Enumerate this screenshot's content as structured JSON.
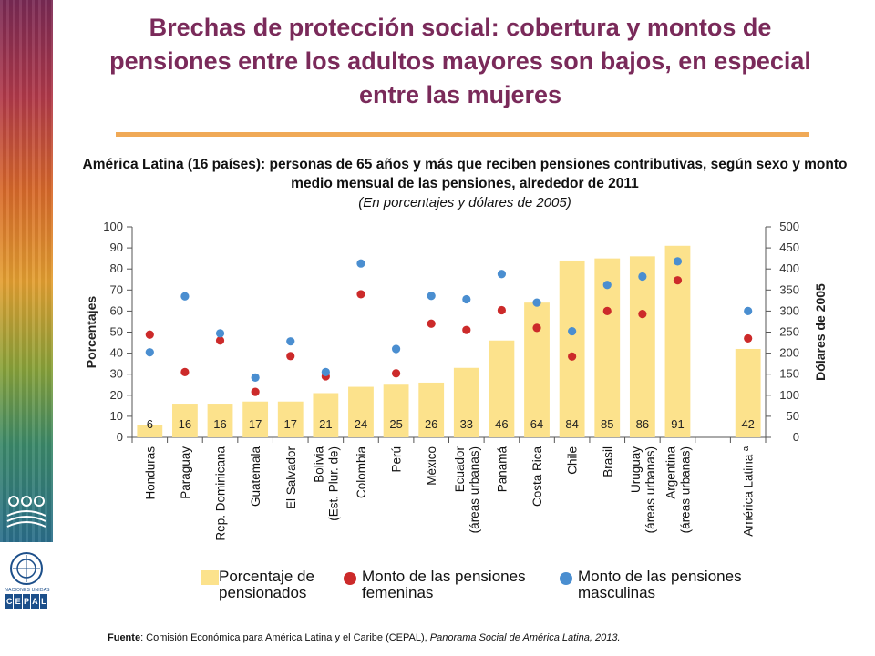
{
  "header": {
    "title": "Brechas de protección social: cobertura y montos de pensiones entre los adultos mayores son bajos, en especial entre las mujeres",
    "subtitle": "América Latina (16 países): personas de 65 años y más que reciben pensiones contributivas, según sexo y monto medio mensual de las pensiones, alrededor de 2011",
    "subtitle_note": "(En porcentajes y dólares de 2005)"
  },
  "logos": {
    "un_label": "NACIONES UNIDAS",
    "cepal_letters": [
      "C",
      "E",
      "P",
      "A",
      "L"
    ]
  },
  "chart_data": {
    "type": "bar",
    "ylabel_left": "Porcentajes",
    "ylabel_right": "Dólares de 2005",
    "ylim_left": [
      0,
      100
    ],
    "ylim_right": [
      0,
      500
    ],
    "yticks_left": [
      0,
      10,
      20,
      30,
      40,
      50,
      60,
      70,
      80,
      90,
      100
    ],
    "yticks_right": [
      0,
      50,
      100,
      150,
      200,
      250,
      300,
      350,
      400,
      450,
      500
    ],
    "categories": [
      [
        "Honduras"
      ],
      [
        "Paraguay"
      ],
      [
        "Rep. Dominicana"
      ],
      [
        "Guatemala"
      ],
      [
        "El Salvador"
      ],
      [
        "Bolivia",
        "(Est. Plur. de)"
      ],
      [
        "Colombia"
      ],
      [
        "Perú"
      ],
      [
        "México"
      ],
      [
        "Ecuador",
        "(áreas urbanas)"
      ],
      [
        "Panamá"
      ],
      [
        "Costa Rica"
      ],
      [
        "Chile"
      ],
      [
        "Brasil"
      ],
      [
        "Uruguay",
        "(áreas urbanas)"
      ],
      [
        "Argentina",
        "(áreas urbanas)"
      ],
      [
        "América Latina ª"
      ]
    ],
    "gap_before_last": true,
    "series": [
      {
        "name": "Porcentaje de pensionados",
        "kind": "bar",
        "axis": "left",
        "color": "#fce28c",
        "values": [
          6,
          16,
          16,
          17,
          17,
          21,
          24,
          25,
          26,
          33,
          46,
          64,
          84,
          85,
          86,
          91,
          42
        ]
      },
      {
        "name": "Monto de las pensiones femeninas",
        "kind": "point",
        "axis": "right",
        "color": "#cc2a2a",
        "values": [
          244,
          155,
          230,
          108,
          193,
          145,
          340,
          152,
          270,
          255,
          302,
          260,
          192,
          300,
          293,
          373,
          235
        ]
      },
      {
        "name": "Monto de las pensiones masculinas",
        "kind": "point",
        "axis": "right",
        "color": "#4a8ed0",
        "values": [
          202,
          335,
          247,
          142,
          228,
          155,
          413,
          210,
          336,
          328,
          388,
          320,
          252,
          362,
          382,
          418,
          300
        ]
      }
    ]
  },
  "legend": {
    "bar_label": "Porcentaje de pensionados",
    "female_label": "Monto de las pensiones femeninas",
    "male_label": "Monto de las pensiones masculinas"
  },
  "source": {
    "label": "Fuente",
    "text": ": Comisión Económica para América Latina y el Caribe (CEPAL), ",
    "publication": "Panorama Social de América Latina, 2013."
  }
}
